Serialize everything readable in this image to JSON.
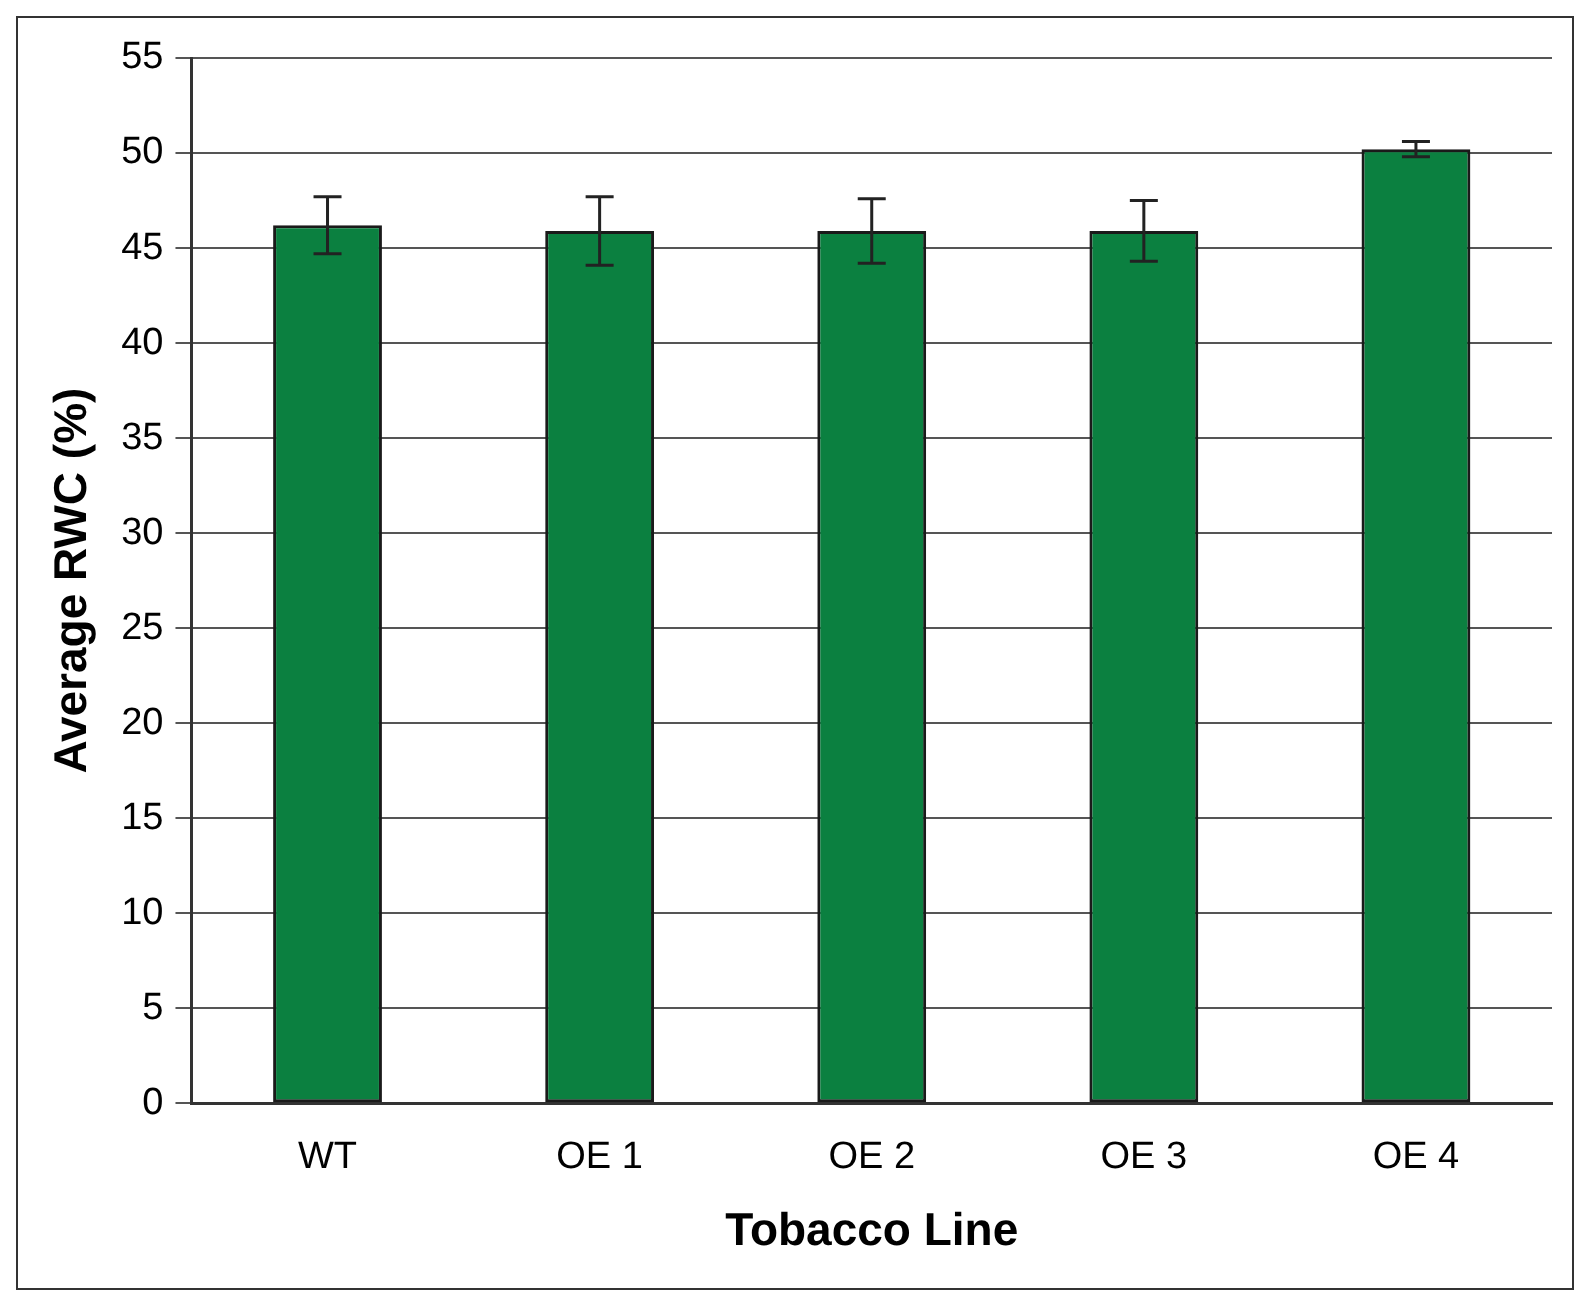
{
  "chart_data": {
    "type": "bar",
    "xlabel": "Tobacco Line",
    "ylabel": "Average RWC (%)",
    "categories": [
      "WT",
      "OE 1",
      "OE 2",
      "OE 3",
      "OE 4"
    ],
    "values": [
      46.2,
      45.9,
      45.9,
      45.9,
      50.2
    ],
    "errors": [
      1.5,
      1.8,
      1.7,
      1.6,
      0.4
    ],
    "color": "#0b8040",
    "ylim": [
      0,
      55
    ],
    "yticks": [
      0,
      5,
      10,
      15,
      20,
      25,
      30,
      35,
      40,
      45,
      50,
      55
    ],
    "grid": "y",
    "legend": false
  }
}
